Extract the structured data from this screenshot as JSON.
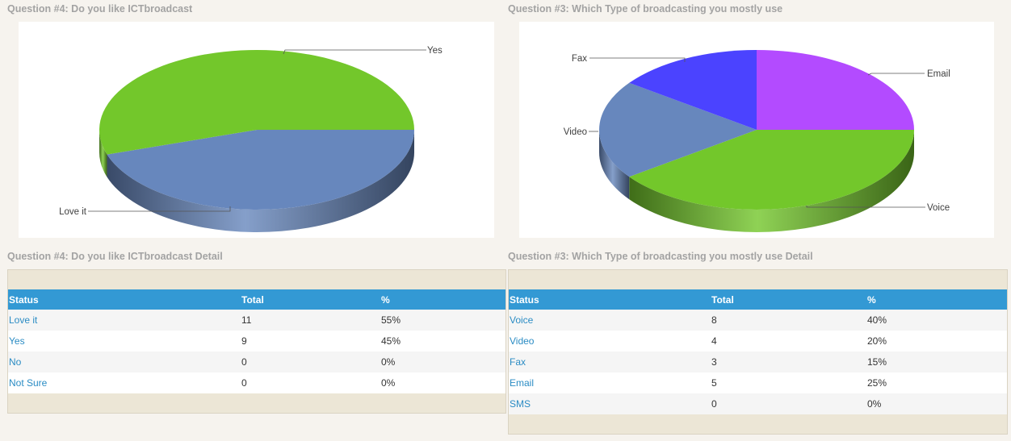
{
  "left": {
    "chart_title": "Question #4: Do you like ICTbroadcast",
    "detail_title": "Question #4: Do you like ICTbroadcast Detail",
    "table": {
      "headers": [
        "Status",
        "Total",
        "%"
      ],
      "rows": [
        {
          "status": "Love it",
          "total": "11",
          "percent": "55%"
        },
        {
          "status": "Yes",
          "total": "9",
          "percent": "45%"
        },
        {
          "status": "No",
          "total": "0",
          "percent": "0%"
        },
        {
          "status": "Not Sure",
          "total": "0",
          "percent": "0%"
        }
      ]
    }
  },
  "right": {
    "chart_title": "Question #3: Which Type of broadcasting you mostly use",
    "detail_title": "Question #3: Which Type of broadcasting you mostly use Detail",
    "table": {
      "headers": [
        "Status",
        "Total",
        "%"
      ],
      "rows": [
        {
          "status": "Voice",
          "total": "8",
          "percent": "40%"
        },
        {
          "status": "Video",
          "total": "4",
          "percent": "20%"
        },
        {
          "status": "Fax",
          "total": "3",
          "percent": "15%"
        },
        {
          "status": "Email",
          "total": "5",
          "percent": "25%"
        },
        {
          "status": "SMS",
          "total": "0",
          "percent": "0%"
        }
      ]
    }
  },
  "chart_data": [
    {
      "type": "pie",
      "title": "Question #4: Do you like ICTbroadcast",
      "style": "3d",
      "slices": [
        {
          "label": "Yes",
          "value": 9,
          "color": "#6787bd"
        },
        {
          "label": "Love it",
          "value": 11,
          "color": "#73c72b"
        }
      ]
    },
    {
      "type": "pie",
      "title": "Question #3: Which Type of broadcasting you mostly use",
      "style": "3d",
      "slices": [
        {
          "label": "Email",
          "value": 5,
          "color": "#b34bff"
        },
        {
          "label": "Voice",
          "value": 8,
          "color": "#73c72b"
        },
        {
          "label": "Video",
          "value": 4,
          "color": "#6787bd"
        },
        {
          "label": "Fax",
          "value": 3,
          "color": "#4b43ff"
        }
      ]
    }
  ]
}
